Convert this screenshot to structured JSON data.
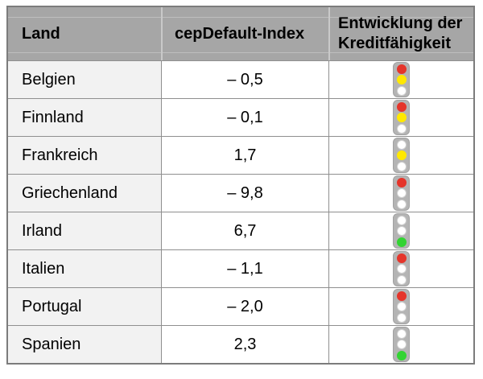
{
  "colors": {
    "header_bg": "#a6a6a6",
    "header_divider": "#c9c9c9",
    "land_bg": "#f2f2f2",
    "grid_line": "#8f8f8f",
    "outer_border": "#7c7c7c",
    "housing": "#b4b4b4",
    "housing_border": "#a2a2a2",
    "off_ring": "#d0d0d0",
    "lights": {
      "red": "#e5352b",
      "yellow": "#ffe800",
      "green": "#33d433",
      "off": "#ffffff"
    }
  },
  "table": {
    "header": {
      "land": "Land",
      "index": "cepDefault-Index",
      "entwicklung_line1": "Entwicklung der",
      "entwicklung_line2": "Kreditfähigkeit"
    },
    "rows": [
      {
        "land": "Belgien",
        "index": "– 0,5",
        "lights": [
          "red",
          "yellow",
          "off"
        ]
      },
      {
        "land": "Finnland",
        "index": "– 0,1",
        "lights": [
          "red",
          "yellow",
          "off"
        ]
      },
      {
        "land": "Frankreich",
        "index": "1,7",
        "lights": [
          "off",
          "yellow",
          "off"
        ]
      },
      {
        "land": "Griechenland",
        "index": "– 9,8",
        "lights": [
          "red",
          "off",
          "off"
        ]
      },
      {
        "land": "Irland",
        "index": "6,7",
        "lights": [
          "off",
          "off",
          "green"
        ]
      },
      {
        "land": "Italien",
        "index": "– 1,1",
        "lights": [
          "red",
          "off",
          "off"
        ]
      },
      {
        "land": "Portugal",
        "index": "– 2,0",
        "lights": [
          "red",
          "off",
          "off"
        ]
      },
      {
        "land": "Spanien",
        "index": "2,3",
        "lights": [
          "off",
          "off",
          "green"
        ]
      }
    ]
  }
}
